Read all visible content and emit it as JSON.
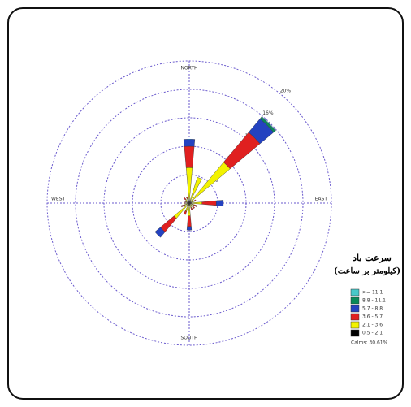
{
  "chart_data": {
    "type": "windrose",
    "compass_labels": [
      "NORTH",
      "EAST",
      "SOUTH",
      "WEST"
    ],
    "x": [
      0,
      22.5,
      45,
      67.5,
      90,
      112.5,
      135,
      157.5,
      180,
      202.5,
      225,
      247.5,
      270,
      292.5,
      315,
      337.5
    ],
    "rlim": [
      0,
      20
    ],
    "rticks": [
      {
        "value": 4,
        "label": "4%"
      },
      {
        "value": 8,
        "label": "8%"
      },
      {
        "value": 12,
        "label": "12%"
      },
      {
        "value": 16,
        "label": "16%"
      },
      {
        "value": 20,
        "label": "20%"
      }
    ],
    "legend_title": [
      "سرعت باد",
      "(کیلومتر بر ساعت)"
    ],
    "calms": "Calms: 30.61%",
    "series": [
      {
        "name": "0.5 - 2.1",
        "color": "#000000",
        "values": [
          0.5,
          0.3,
          0.5,
          0.2,
          0.3,
          0.2,
          0.2,
          0.2,
          0.3,
          0.2,
          0.3,
          0.2,
          0.2,
          0.2,
          0.2,
          0.2
        ]
      },
      {
        "name": "2.1 - 3.6",
        "color": "#f2f200",
        "values": [
          4.5,
          3.5,
          7,
          0.5,
          1.5,
          0.5,
          0.5,
          0.5,
          1.5,
          1,
          2.5,
          0.5,
          0.3,
          0.3,
          0.5,
          0.5
        ]
      },
      {
        "name": "3.6 - 5.7",
        "color": "#e02020",
        "values": [
          3,
          0,
          5.5,
          0.3,
          2,
          0.5,
          0.3,
          0.3,
          1.5,
          0.5,
          2.5,
          0.5,
          0.2,
          0.2,
          0.3,
          0.2
        ]
      },
      {
        "name": "5.7 - 8.8",
        "color": "#2442c0",
        "values": [
          1,
          0,
          2.5,
          0,
          1,
          0,
          0,
          0,
          0.5,
          0,
          1,
          0,
          0,
          0,
          0,
          0
        ]
      },
      {
        "name": "8.8 - 11.1",
        "color": "#0a8a5a",
        "values": [
          0,
          0,
          0.3,
          0,
          0,
          0,
          0,
          0,
          0,
          0,
          0,
          0,
          0,
          0,
          0,
          0
        ]
      },
      {
        "name": ">= 11.1",
        "color": "#48c8c8",
        "values": [
          0,
          0,
          0.1,
          0,
          0,
          0,
          0,
          0,
          0,
          0,
          0,
          0,
          0,
          0,
          0,
          0
        ]
      }
    ]
  }
}
